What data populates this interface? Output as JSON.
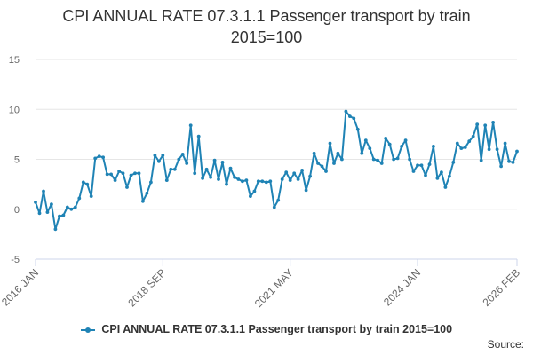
{
  "chart_data": {
    "type": "line",
    "title_lines": [
      "CPI ANNUAL RATE 07.3.1.1 Passenger transport by train",
      "2015=100"
    ],
    "xlabel": "",
    "ylabel": "",
    "ylim": [
      -5,
      15
    ],
    "yticks": [
      -5,
      0,
      5,
      10,
      15
    ],
    "xticks": [
      {
        "label": "2016 JAN",
        "index": 0
      },
      {
        "label": "2018 SEP",
        "index": 32
      },
      {
        "label": "2021 MAY",
        "index": 64
      },
      {
        "label": "2024 JAN",
        "index": 96
      },
      {
        "label": "2026 FEB",
        "index": 121
      }
    ],
    "grid": true,
    "legend_position": "bottom",
    "series": [
      {
        "name": "CPI ANNUAL RATE 07.3.1.1 Passenger transport by train 2015=100",
        "color": "#1f83b5",
        "values": [
          0.7,
          -0.4,
          1.8,
          -0.3,
          0.5,
          -2.0,
          -0.7,
          -0.6,
          0.2,
          0.0,
          0.2,
          1.1,
          2.7,
          2.5,
          1.3,
          5.1,
          5.3,
          5.2,
          3.5,
          3.5,
          2.9,
          3.8,
          3.6,
          2.2,
          3.4,
          3.6,
          3.6,
          0.8,
          1.6,
          2.7,
          5.4,
          4.8,
          5.4,
          2.9,
          4.0,
          4.0,
          5.0,
          5.5,
          4.6,
          8.4,
          3.6,
          7.3,
          3.1,
          4.0,
          3.2,
          4.9,
          3.0,
          4.7,
          2.5,
          4.1,
          3.2,
          3.0,
          2.8,
          2.9,
          1.3,
          1.8,
          2.8,
          2.8,
          2.7,
          2.8,
          0.2,
          0.9,
          3.0,
          3.7,
          2.9,
          3.6,
          3.0,
          3.9,
          1.9,
          3.3,
          5.6,
          4.6,
          4.3,
          3.8,
          6.6,
          4.6,
          5.6,
          5.0,
          9.8,
          9.3,
          9.1,
          8.0,
          5.6,
          6.9,
          6.1,
          5.0,
          4.9,
          4.6,
          7.1,
          6.5,
          5.0,
          5.1,
          6.3,
          6.9,
          5.0,
          3.8,
          4.4,
          4.4,
          3.4,
          4.5,
          6.3,
          3.1,
          3.7,
          2.2,
          3.3,
          4.7,
          6.6,
          6.1,
          6.2,
          6.8,
          7.3,
          8.5,
          4.9,
          8.4,
          6.0,
          8.7,
          6.0,
          4.3,
          6.6,
          4.8,
          4.7,
          5.8
        ]
      }
    ]
  },
  "footer": {
    "source_label": "Source:"
  }
}
